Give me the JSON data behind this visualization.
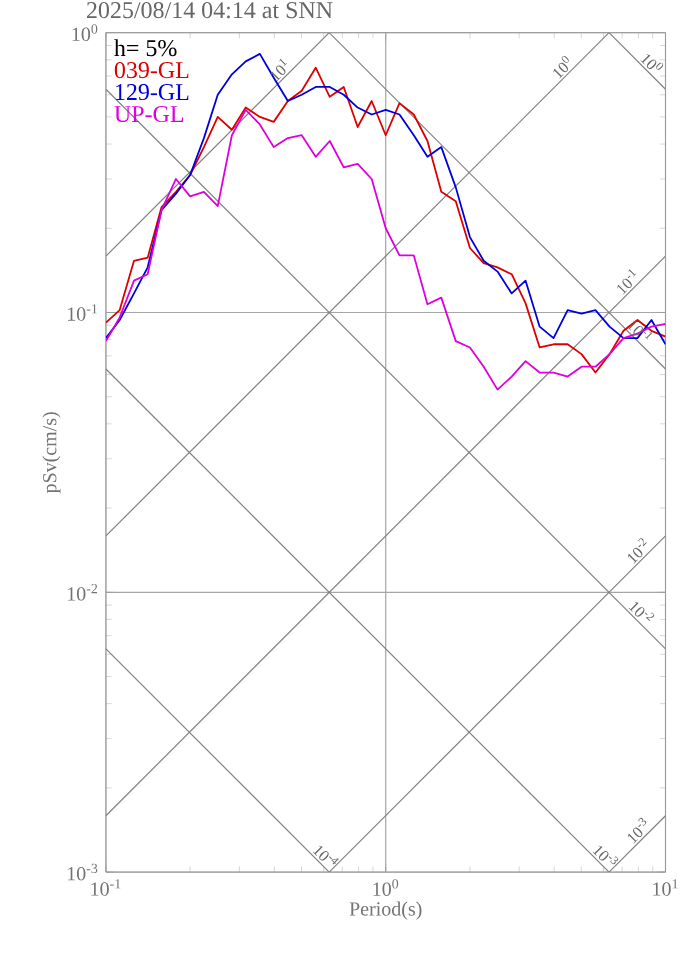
{
  "chart_data": {
    "type": "line",
    "title": "2025/08/14 04:14 at SNN",
    "xlabel": "Period(s)",
    "ylabel": "pSv(cm/s)",
    "log": "xy",
    "grid": true,
    "legend": "top left",
    "xlim": [
      0.1,
      10
    ],
    "ylim": [
      0.001,
      1
    ],
    "xticks": [
      {
        "value": 0.1,
        "label": "10$^{-1}$"
      },
      {
        "value": 1,
        "label": "10$^{0}$"
      },
      {
        "value": 10,
        "label": "10$^{1}$"
      }
    ],
    "yticks": [
      {
        "value": 0.001,
        "label": "10$^{-3}$"
      },
      {
        "value": 0.01,
        "label": "10$^{-2}$"
      },
      {
        "value": 0.1,
        "label": "10$^{-1}$"
      },
      {
        "value": 1,
        "label": "10$^{0}$"
      }
    ],
    "x": [
      0.1,
      0.112,
      0.126,
      0.141,
      0.158,
      0.178,
      0.2,
      0.224,
      0.251,
      0.282,
      0.316,
      0.355,
      0.398,
      0.447,
      0.501,
      0.562,
      0.631,
      0.708,
      0.794,
      0.891,
      1,
      1.12,
      1.26,
      1.41,
      1.58,
      1.78,
      2,
      2.24,
      2.51,
      2.82,
      3.16,
      3.55,
      3.98,
      4.47,
      5.01,
      5.62,
      6.31,
      7.08,
      7.94,
      8.91,
      10
    ],
    "series": [
      {
        "type": "line",
        "color": "#808080",
        "x": [
          0.1,
          0.628
        ],
        "values": [
          0.159,
          1
        ]
      },
      {
        "type": "line",
        "color": "#808080",
        "x": [
          0.1,
          6.283
        ],
        "values": [
          0.0159,
          1
        ]
      },
      {
        "type": "line",
        "color": "#808080",
        "x": [
          0.1,
          10
        ],
        "values": [
          0.00159,
          0.159
        ]
      },
      {
        "type": "line",
        "color": "#808080",
        "x": [
          0.628,
          10
        ],
        "values": [
          0.001,
          0.0159
        ]
      },
      {
        "type": "line",
        "color": "#808080",
        "x": [
          6.283,
          10
        ],
        "values": [
          0.001,
          0.00159
        ]
      },
      {
        "type": "line",
        "color": "#808080",
        "x": [
          6.283,
          10
        ],
        "values": [
          1,
          0.628
        ]
      },
      {
        "type": "line",
        "color": "#808080",
        "x": [
          0.628,
          10
        ],
        "values": [
          1,
          0.0628
        ]
      },
      {
        "type": "line",
        "color": "#808080",
        "x": [
          0.1,
          10
        ],
        "values": [
          0.628,
          0.00628
        ]
      },
      {
        "type": "line",
        "color": "#808080",
        "x": [
          0.1,
          6.283
        ],
        "values": [
          0.0628,
          0.001
        ]
      },
      {
        "type": "line",
        "color": "#808080",
        "x": [
          0.1,
          0.628
        ],
        "values": [
          0.00628,
          0.001
        ]
      },
      {
        "name": "039-GL",
        "color": "#dd0000",
        "values": [
          0.092,
          0.102,
          0.153,
          0.157,
          0.238,
          0.27,
          0.31,
          0.39,
          0.5,
          0.45,
          0.54,
          0.5,
          0.48,
          0.57,
          0.62,
          0.75,
          0.59,
          0.64,
          0.46,
          0.57,
          0.43,
          0.56,
          0.51,
          0.41,
          0.27,
          0.25,
          0.17,
          0.15,
          0.145,
          0.137,
          0.108,
          0.075,
          0.077,
          0.077,
          0.071,
          0.061,
          0.071,
          0.086,
          0.094,
          0.086,
          0.082
        ]
      },
      {
        "name": "129-GL",
        "color": "#0000dd",
        "values": [
          0.081,
          0.094,
          0.117,
          0.145,
          0.232,
          0.266,
          0.31,
          0.42,
          0.6,
          0.71,
          0.79,
          0.84,
          0.69,
          0.57,
          0.6,
          0.64,
          0.64,
          0.6,
          0.54,
          0.51,
          0.53,
          0.51,
          0.43,
          0.36,
          0.39,
          0.28,
          0.186,
          0.153,
          0.14,
          0.117,
          0.13,
          0.089,
          0.081,
          0.102,
          0.099,
          0.102,
          0.089,
          0.081,
          0.081,
          0.094,
          0.077
        ]
      },
      {
        "name": "UP-GL",
        "color": "#dd00dd",
        "values": [
          0.079,
          0.096,
          0.13,
          0.137,
          0.232,
          0.3,
          0.26,
          0.27,
          0.24,
          0.43,
          0.53,
          0.47,
          0.39,
          0.42,
          0.43,
          0.36,
          0.41,
          0.33,
          0.34,
          0.3,
          0.2,
          0.16,
          0.16,
          0.107,
          0.113,
          0.079,
          0.075,
          0.064,
          0.053,
          0.059,
          0.067,
          0.061,
          0.061,
          0.059,
          0.064,
          0.064,
          0.071,
          0.081,
          0.084,
          0.089,
          0.091
        ]
      }
    ],
    "annotations": [
      "h= 5%",
      {
        "text": "10$^{1}$",
        "x": 0.44,
        "y": 0.7
      },
      {
        "text": "10$^{0}$",
        "x": 4.5,
        "y": 0.716
      },
      {
        "text": "10$^{0}$",
        "x": 8.5,
        "y": 0.739
      },
      {
        "text": "10$^{-1}$",
        "x": 7.7,
        "y": 0.1225
      },
      {
        "text": "10$^{-1}$",
        "x": 7.7,
        "y": 0.0816
      },
      {
        "text": "10$^{-2}$",
        "x": 8.4,
        "y": 0.01337
      },
      {
        "text": "10$^{-2}$",
        "x": 7.8,
        "y": 0.00806
      },
      {
        "text": "10$^{-3}$",
        "x": 5.8,
        "y": 0.001083
      },
      {
        "text": "10$^{-3}$",
        "x": 8.4,
        "y": 0.001337
      },
      {
        "text": "10$^{-4}$",
        "x": 0.58,
        "y": 0.001083
      }
    ]
  }
}
